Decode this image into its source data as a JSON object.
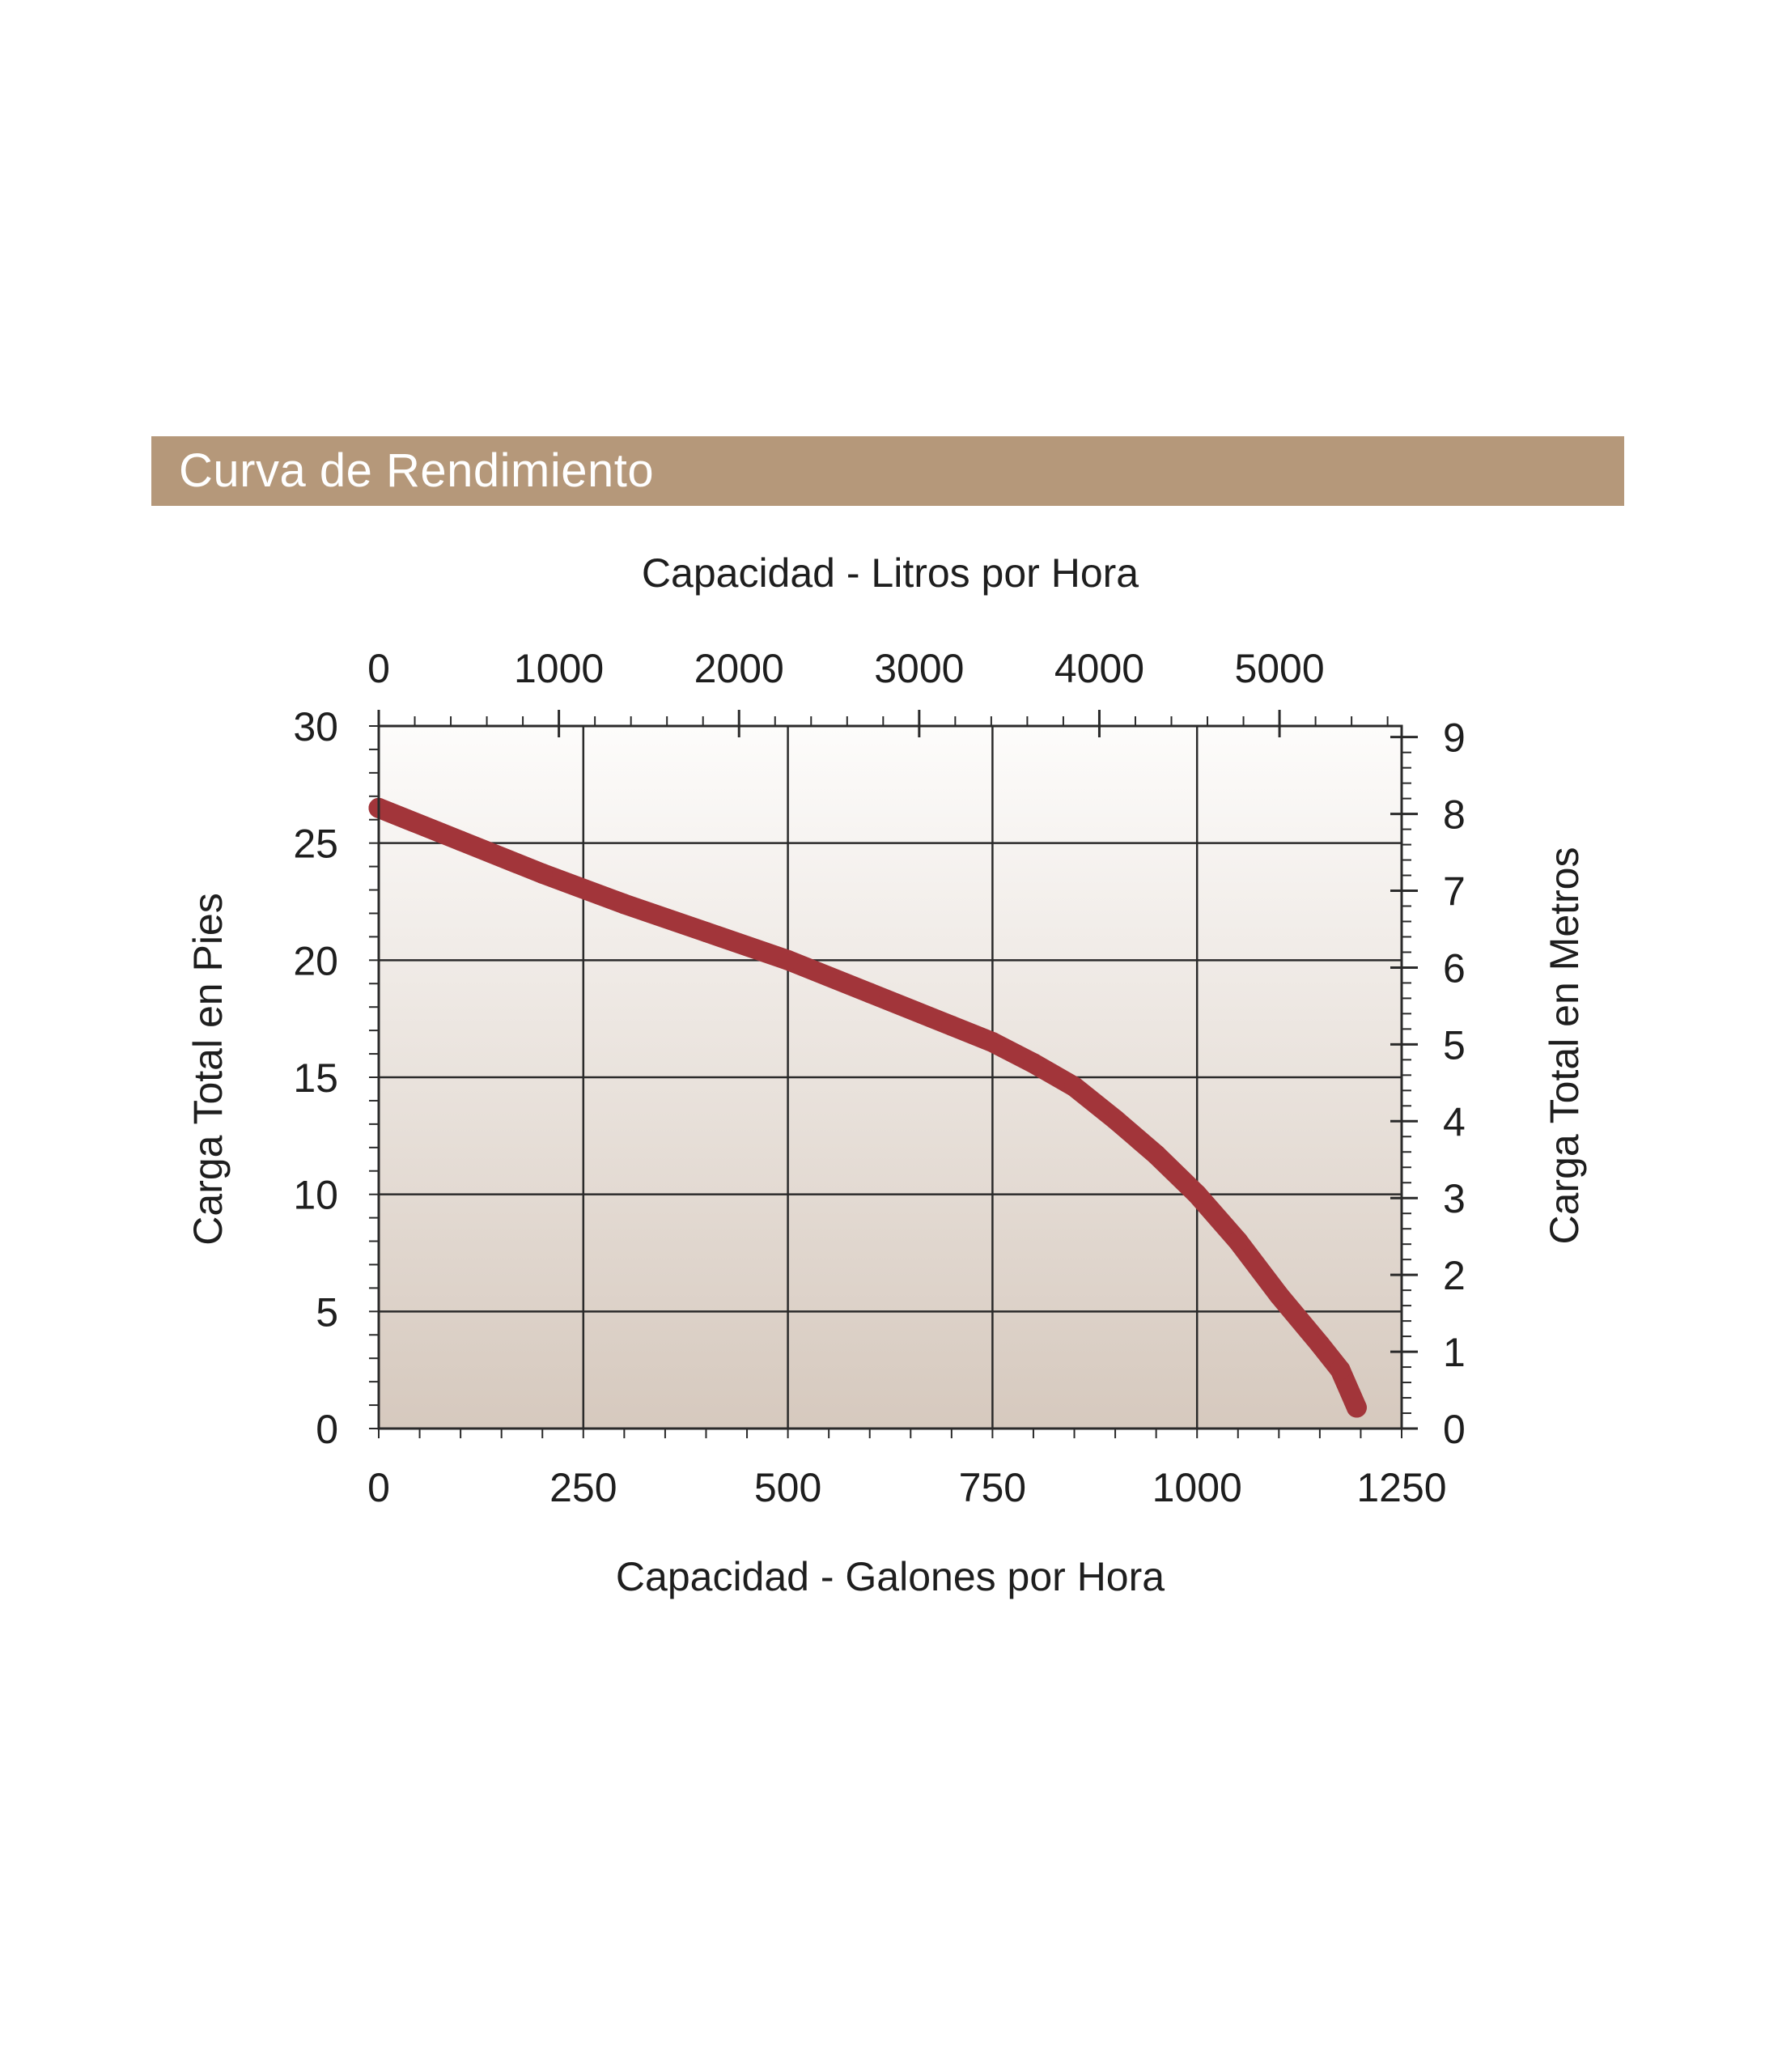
{
  "banner": {
    "title": "Curva de Rendimiento",
    "color": "#b5987a"
  },
  "chart_data": {
    "type": "line",
    "title": "",
    "xlabel": "Capacidad - Galones por Hora",
    "x2label": "Capacidad - Litros por Hora",
    "ylabel": "Carga Total en Pies",
    "y2label": "Carga Total en Metros",
    "xlim": [
      0,
      1250
    ],
    "ylim": [
      0,
      30
    ],
    "x2lim": [
      0,
      5678
    ],
    "y2lim": [
      0,
      9.144
    ],
    "x_ticks": [
      0,
      250,
      500,
      750,
      1000,
      1250
    ],
    "y_ticks": [
      0,
      5,
      10,
      15,
      20,
      25,
      30
    ],
    "x2_ticks": [
      0,
      1000,
      2000,
      3000,
      4000,
      5000
    ],
    "y2_ticks": [
      0,
      1,
      2,
      3,
      4,
      5,
      6,
      7,
      8,
      9
    ],
    "grid": true,
    "line_color": "#a2353a",
    "series": [
      {
        "x": [
          0,
          100,
          200,
          300,
          400,
          500,
          600,
          700,
          750,
          800,
          850,
          900,
          950,
          1000,
          1050,
          1100,
          1150,
          1175,
          1195
        ],
        "y": [
          26.5,
          25.1,
          23.7,
          22.4,
          21.2,
          20.0,
          18.6,
          17.2,
          16.5,
          15.6,
          14.6,
          13.2,
          11.7,
          10.0,
          8.0,
          5.7,
          3.6,
          2.5,
          0.9
        ]
      }
    ]
  }
}
